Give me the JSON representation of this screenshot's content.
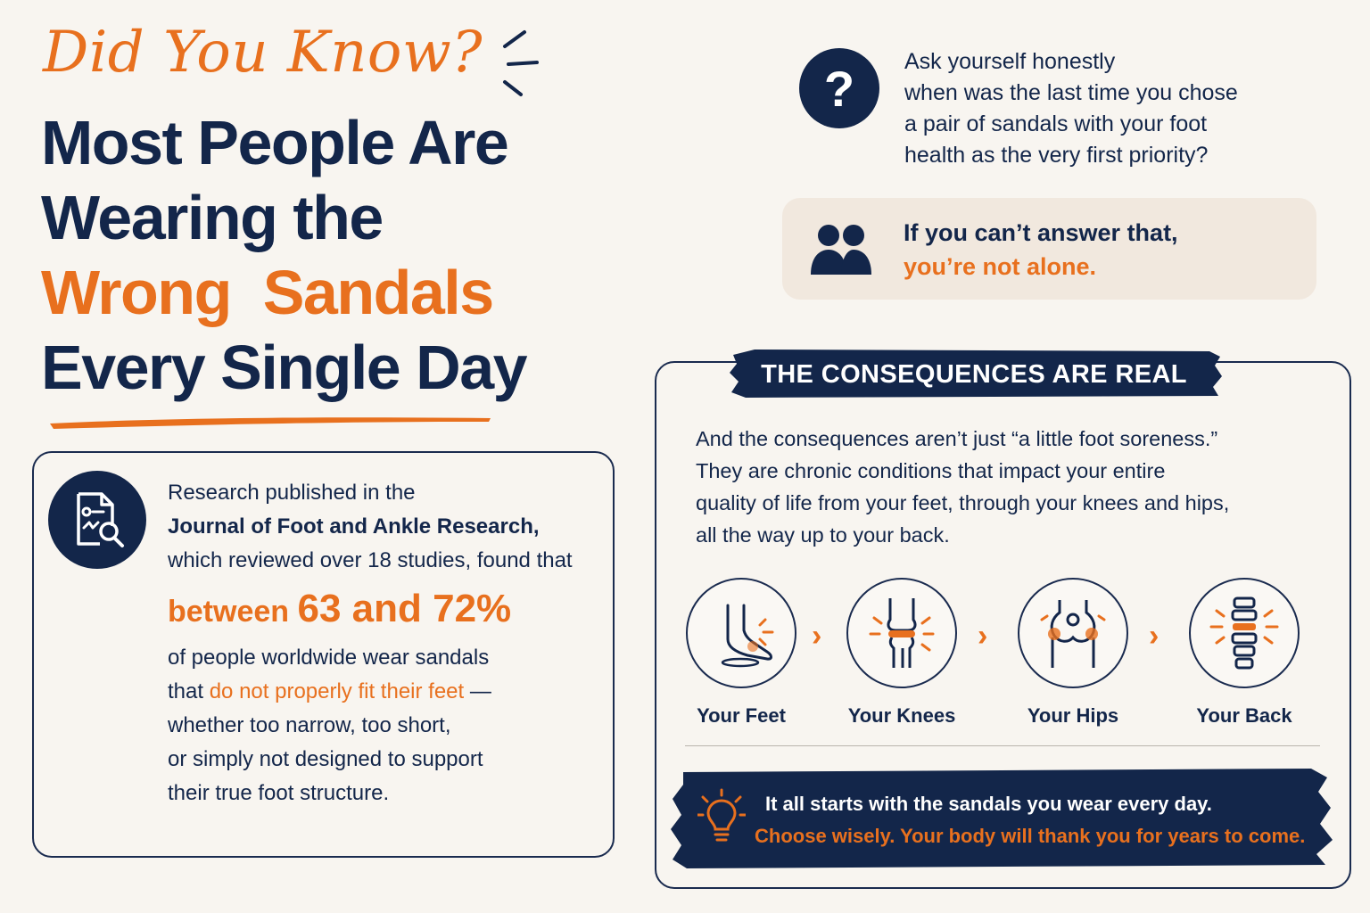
{
  "kicker": "Did You Know?",
  "headline": {
    "line1": "Most People Are",
    "line2": "Wearing the",
    "line3": "Wrong  Sandals",
    "line4": "Every Single Day"
  },
  "research": {
    "icon": "research-document-magnifier-icon",
    "intro": "Research published in the",
    "journal": "Journal of Foot and Ankle Research,",
    "reviewed": "which reviewed over 18 studies, found that",
    "stat_prefix": "between ",
    "stat_value": "63 and 72%",
    "body1": "of people worldwide wear sandals",
    "body2_prefix": "that ",
    "body2_highlight": "do not properly fit their feet",
    "body2_suffix": " —",
    "body3": "whether too narrow, too short,",
    "body4": "or simply not designed to support",
    "body5": "their true foot structure."
  },
  "question": {
    "icon": "question-mark-icon",
    "line1": "Ask yourself honestly",
    "line2": "when was the last time you chose",
    "line3": "a pair of sandals with your foot",
    "line4": "health as the very first priority?"
  },
  "alone": {
    "icon": "people-icon",
    "line1": "If you can’t answer that,",
    "line2": "you’re not alone."
  },
  "consequences": {
    "banner": "THE CONSEQUENCES ARE REAL",
    "line1": "And the consequences aren’t just “a little foot soreness.”",
    "line2": "They are chronic conditions that impact your entire",
    "line3": "quality of life from your feet, through your knees and hips,",
    "line4": "all the way up to your back.",
    "steps": [
      {
        "label": "Your Feet",
        "icon": "foot-icon"
      },
      {
        "label": "Your Knees",
        "icon": "knee-joint-icon"
      },
      {
        "label": "Your Hips",
        "icon": "hip-joint-icon"
      },
      {
        "label": "Your Back",
        "icon": "spine-icon"
      }
    ],
    "footer_icon": "lightbulb-icon",
    "footer_line1": "It all starts with the sandals you wear every day.",
    "footer_line2": "Choose wisely. Your body will thank you for years to come."
  },
  "colors": {
    "navy": "#13264a",
    "orange": "#e8701e",
    "background": "#f8f5f0",
    "soft_box": "#f1e8de"
  }
}
